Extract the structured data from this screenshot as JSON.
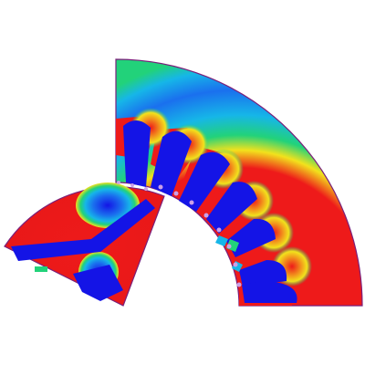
{
  "figure": {
    "kind": "motor flux density contour plot (cross-section)",
    "components": [
      "stator",
      "rotor"
    ],
    "stator": {
      "slot_count": 6
    },
    "rotor": {
      "magnet_count": 2
    }
  },
  "colors": {
    "background": "#ffffff",
    "low_field": "#1414e6",
    "low_mid": "#16b6e8",
    "mid": "#22d27a",
    "mid_high": "#f2e21c",
    "high_field": "#ee1a1a",
    "outline": "#7a1f7a",
    "slot_tip": "#caa0e8"
  }
}
